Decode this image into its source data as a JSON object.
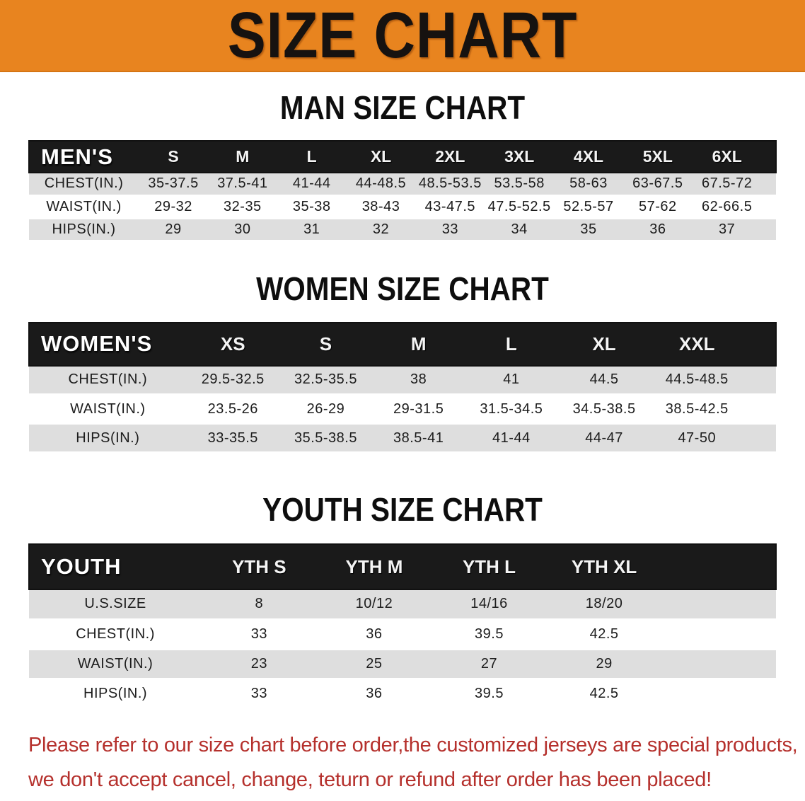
{
  "banner": {
    "title": "SIZE CHART"
  },
  "sections": [
    {
      "heading": "MAN SIZE CHART",
      "table": {
        "label": "MEN'S",
        "columns": [
          "S",
          "M",
          "L",
          "XL",
          "2XL",
          "3XL",
          "4XL",
          "5XL",
          "6XL"
        ],
        "rows": [
          {
            "label": "CHEST(IN.)",
            "values": [
              "35-37.5",
              "37.5-41",
              "41-44",
              "44-48.5",
              "48.5-53.5",
              "53.5-58",
              "58-63",
              "63-67.5",
              "67.5-72"
            ]
          },
          {
            "label": "WAIST(IN.)",
            "values": [
              "29-32",
              "32-35",
              "35-38",
              "38-43",
              "43-47.5",
              "47.5-52.5",
              "52.5-57",
              "57-62",
              "62-66.5"
            ]
          },
          {
            "label": "HIPS(IN.)",
            "values": [
              "29",
              "30",
              "31",
              "32",
              "33",
              "34",
              "35",
              "36",
              "37"
            ]
          }
        ]
      }
    },
    {
      "heading": "WOMEN SIZE CHART",
      "table": {
        "label": "WOMEN'S",
        "columns": [
          "XS",
          "S",
          "M",
          "L",
          "XL",
          "XXL"
        ],
        "rows": [
          {
            "label": "CHEST(IN.)",
            "values": [
              "29.5-32.5",
              "32.5-35.5",
              "38",
              "41",
              "44.5",
              "44.5-48.5"
            ]
          },
          {
            "label": "WAIST(IN.)",
            "values": [
              "23.5-26",
              "26-29",
              "29-31.5",
              "31.5-34.5",
              "34.5-38.5",
              "38.5-42.5"
            ]
          },
          {
            "label": "HIPS(IN.)",
            "values": [
              "33-35.5",
              "35.5-38.5",
              "38.5-41",
              "41-44",
              "44-47",
              "47-50"
            ]
          }
        ]
      }
    },
    {
      "heading": "YOUTH SIZE CHART",
      "table": {
        "label": "YOUTH",
        "columns": [
          "YTH S",
          "YTH M",
          "YTH L",
          "YTH XL"
        ],
        "rows": [
          {
            "label": "U.S.SIZE",
            "values": [
              "8",
              "10/12",
              "14/16",
              "18/20"
            ]
          },
          {
            "label": "CHEST(IN.)",
            "values": [
              "33",
              "36",
              "39.5",
              "42.5"
            ]
          },
          {
            "label": "WAIST(IN.)",
            "values": [
              "23",
              "25",
              "27",
              "29"
            ]
          },
          {
            "label": "HIPS(IN.)",
            "values": [
              "33",
              "36",
              "39.5",
              "42.5"
            ]
          }
        ]
      }
    }
  ],
  "disclaimer": {
    "line1": "Please refer to our size chart before order,the customized jerseys are special products,",
    "line2": "we don't accept cancel, change, teturn or refund after order has been placed!"
  },
  "colors": {
    "banner_orange": "#E8841F",
    "header_black": "#1A1A1A",
    "row_gray": "#DEDEDE",
    "disclaimer_red": "#B5302C"
  }
}
